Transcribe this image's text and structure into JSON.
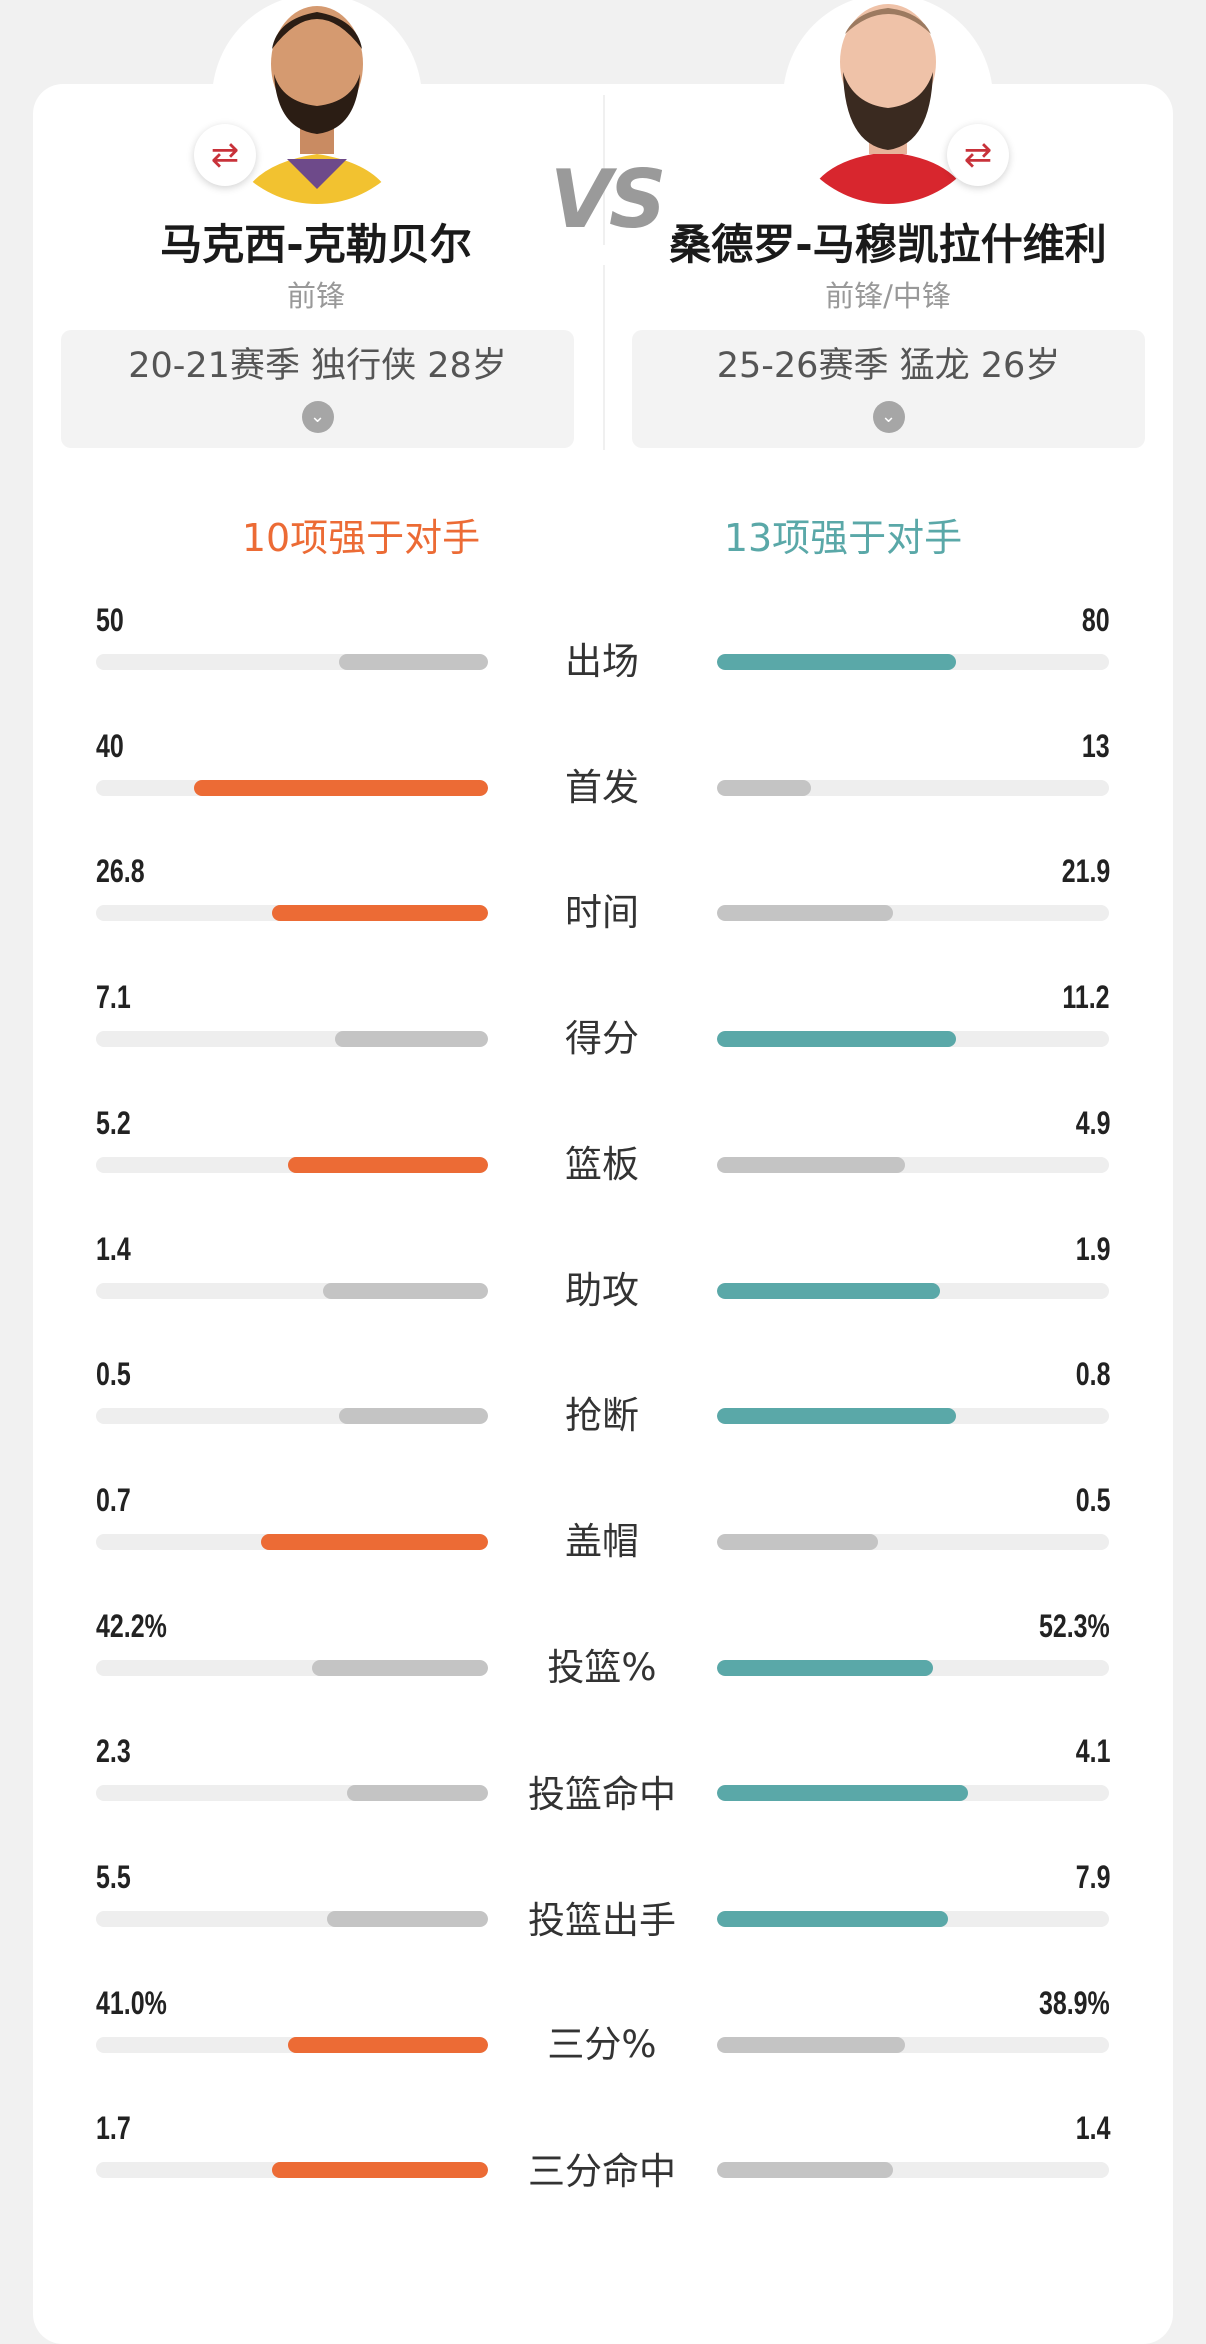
{
  "players": {
    "left": {
      "name": "马克西-克勒贝尔",
      "position": "前锋",
      "season_info": "20-21赛季 独行侠 28岁"
    },
    "right": {
      "name": "桑德罗-马穆凯拉什维利",
      "position": "前锋/中锋",
      "season_info": "25-26赛季 猛龙 26岁"
    }
  },
  "vs_label": "VS",
  "summary": {
    "left": "10项强于对手",
    "right": "13项强于对手"
  },
  "colors": {
    "left_accent": "#ec6b35",
    "right_accent": "#5aa8a8",
    "neutral_bar": "#c4c4c4",
    "track": "#eeeeee"
  },
  "icons": {
    "swap": "swap-arrows-icon",
    "chevron": "chevron-down-icon"
  },
  "stats": [
    {
      "label": "出场",
      "left": "50",
      "right": "80",
      "left_fill": 0.38,
      "right_fill": 0.61,
      "winner": "right"
    },
    {
      "label": "首发",
      "left": "40",
      "right": "13",
      "left_fill": 0.75,
      "right_fill": 0.24,
      "winner": "left"
    },
    {
      "label": "时间",
      "left": "26.8",
      "right": "21.9",
      "left_fill": 0.55,
      "right_fill": 0.45,
      "winner": "left"
    },
    {
      "label": "得分",
      "left": "7.1",
      "right": "11.2",
      "left_fill": 0.39,
      "right_fill": 0.61,
      "winner": "right"
    },
    {
      "label": "篮板",
      "left": "5.2",
      "right": "4.9",
      "left_fill": 0.51,
      "right_fill": 0.48,
      "winner": "left"
    },
    {
      "label": "助攻",
      "left": "1.4",
      "right": "1.9",
      "left_fill": 0.42,
      "right_fill": 0.57,
      "winner": "right"
    },
    {
      "label": "抢断",
      "left": "0.5",
      "right": "0.8",
      "left_fill": 0.38,
      "right_fill": 0.61,
      "winner": "right"
    },
    {
      "label": "盖帽",
      "left": "0.7",
      "right": "0.5",
      "left_fill": 0.58,
      "right_fill": 0.41,
      "winner": "left"
    },
    {
      "label": "投篮%",
      "left": "42.2%",
      "right": "52.3%",
      "left_fill": 0.45,
      "right_fill": 0.55,
      "winner": "right"
    },
    {
      "label": "投篮命中",
      "left": "2.3",
      "right": "4.1",
      "left_fill": 0.36,
      "right_fill": 0.64,
      "winner": "right"
    },
    {
      "label": "投篮出手",
      "left": "5.5",
      "right": "7.9",
      "left_fill": 0.41,
      "right_fill": 0.59,
      "winner": "right"
    },
    {
      "label": "三分%",
      "left": "41.0%",
      "right": "38.9%",
      "left_fill": 0.51,
      "right_fill": 0.48,
      "winner": "left"
    },
    {
      "label": "三分命中",
      "left": "1.7",
      "right": "1.4",
      "left_fill": 0.55,
      "right_fill": 0.45,
      "winner": "left"
    }
  ]
}
